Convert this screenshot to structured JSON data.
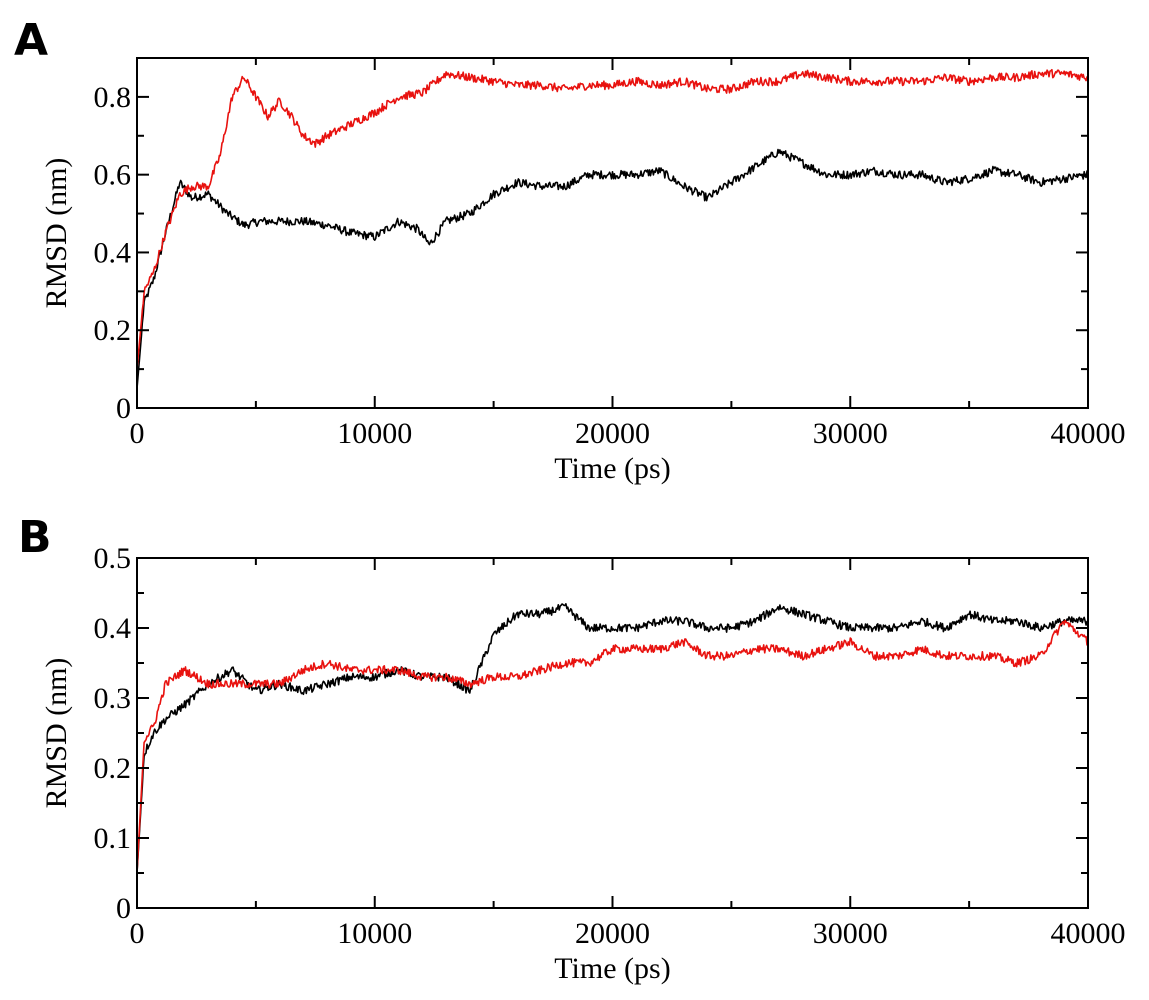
{
  "colors": {
    "black_series": "#000000",
    "red_series": "#e8120f"
  },
  "chart_data": [
    {
      "type": "line",
      "panel": "A",
      "title": "",
      "xlabel": "Time (ps)",
      "ylabel": "RMSD (nm)",
      "xlim": [
        0,
        40000
      ],
      "ylim": [
        0,
        0.9
      ],
      "x_major_ticks": [
        0,
        10000,
        20000,
        30000,
        40000
      ],
      "x_tick_labels": [
        "0",
        "10000",
        "20000",
        "30000",
        "40000"
      ],
      "x_minor_ticks": [
        5000,
        15000,
        25000,
        35000
      ],
      "y_major_ticks": [
        0,
        0.2,
        0.4,
        0.6,
        0.8
      ],
      "y_tick_labels": [
        "0",
        "0.2",
        "0.4",
        "0.6",
        "0.8"
      ],
      "y_minor_ticks": [
        0.1,
        0.3,
        0.5,
        0.7
      ],
      "series": [
        {
          "name": "black",
          "color": "#000000",
          "x": [
            0,
            300,
            700,
            1200,
            1800,
            2300,
            3000,
            3800,
            4500,
            5200,
            6000,
            7000,
            8000,
            9000,
            10000,
            11000,
            11800,
            12300,
            13000,
            14000,
            15000,
            16000,
            17000,
            18000,
            19000,
            20000,
            21000,
            22000,
            23000,
            24000,
            25000,
            26000,
            27000,
            28000,
            29000,
            30000,
            31000,
            32000,
            33000,
            34000,
            35000,
            36000,
            37000,
            38000,
            39000,
            40000
          ],
          "values": [
            0.05,
            0.27,
            0.33,
            0.45,
            0.58,
            0.54,
            0.55,
            0.5,
            0.47,
            0.48,
            0.48,
            0.48,
            0.47,
            0.45,
            0.44,
            0.48,
            0.46,
            0.42,
            0.48,
            0.5,
            0.55,
            0.58,
            0.57,
            0.57,
            0.6,
            0.6,
            0.6,
            0.61,
            0.57,
            0.54,
            0.58,
            0.62,
            0.66,
            0.63,
            0.6,
            0.6,
            0.61,
            0.6,
            0.6,
            0.58,
            0.59,
            0.61,
            0.6,
            0.58,
            0.59,
            0.6
          ]
        },
        {
          "name": "red",
          "color": "#e8120f",
          "x": [
            0,
            300,
            700,
            1200,
            1800,
            2300,
            3000,
            3500,
            4000,
            4500,
            5000,
            5500,
            6000,
            6500,
            7000,
            7500,
            8000,
            9000,
            10000,
            11000,
            12000,
            13000,
            14000,
            15000,
            16000,
            17000,
            18000,
            19000,
            20000,
            21000,
            22000,
            23000,
            24000,
            25000,
            26000,
            27000,
            28000,
            29000,
            30000,
            31000,
            32000,
            33000,
            34000,
            35000,
            36000,
            37000,
            38000,
            39000,
            40000
          ],
          "values": [
            0.1,
            0.3,
            0.35,
            0.45,
            0.55,
            0.57,
            0.57,
            0.65,
            0.8,
            0.85,
            0.8,
            0.75,
            0.79,
            0.75,
            0.7,
            0.68,
            0.7,
            0.73,
            0.76,
            0.8,
            0.81,
            0.86,
            0.85,
            0.84,
            0.83,
            0.83,
            0.82,
            0.83,
            0.83,
            0.84,
            0.83,
            0.84,
            0.82,
            0.82,
            0.84,
            0.84,
            0.86,
            0.85,
            0.84,
            0.84,
            0.84,
            0.84,
            0.85,
            0.84,
            0.85,
            0.85,
            0.86,
            0.86,
            0.85
          ]
        }
      ]
    },
    {
      "type": "line",
      "panel": "B",
      "title": "",
      "xlabel": "Time (ps)",
      "ylabel": "RMSD (nm)",
      "xlim": [
        0,
        40000
      ],
      "ylim": [
        0,
        0.5
      ],
      "x_major_ticks": [
        0,
        10000,
        20000,
        30000,
        40000
      ],
      "x_tick_labels": [
        "0",
        "10000",
        "20000",
        "30000",
        "40000"
      ],
      "x_minor_ticks": [
        5000,
        15000,
        25000,
        35000
      ],
      "y_major_ticks": [
        0,
        0.1,
        0.2,
        0.3,
        0.4,
        0.5
      ],
      "y_tick_labels": [
        "0",
        "0.1",
        "0.2",
        "0.3",
        "0.4",
        "0.5"
      ],
      "y_minor_ticks": [
        0.05,
        0.15,
        0.25,
        0.35,
        0.45
      ],
      "series": [
        {
          "name": "black",
          "color": "#000000",
          "x": [
            0,
            300,
            700,
            1200,
            2000,
            3000,
            4000,
            5000,
            6000,
            7000,
            8000,
            9000,
            10000,
            11000,
            12000,
            13000,
            14000,
            14500,
            15000,
            16000,
            17000,
            18000,
            19000,
            20000,
            21000,
            22000,
            23000,
            24000,
            25000,
            26000,
            27000,
            28000,
            29000,
            30000,
            31000,
            32000,
            33000,
            34000,
            35000,
            36000,
            37000,
            38000,
            39000,
            40000
          ],
          "values": [
            0.05,
            0.22,
            0.25,
            0.27,
            0.29,
            0.32,
            0.34,
            0.31,
            0.32,
            0.31,
            0.32,
            0.33,
            0.33,
            0.34,
            0.33,
            0.33,
            0.31,
            0.35,
            0.39,
            0.42,
            0.42,
            0.43,
            0.4,
            0.4,
            0.4,
            0.41,
            0.41,
            0.4,
            0.4,
            0.41,
            0.43,
            0.42,
            0.41,
            0.4,
            0.4,
            0.4,
            0.41,
            0.4,
            0.42,
            0.41,
            0.41,
            0.4,
            0.41,
            0.41
          ]
        },
        {
          "name": "red",
          "color": "#e8120f",
          "x": [
            0,
            300,
            700,
            1200,
            2000,
            3000,
            4000,
            5000,
            6000,
            7000,
            8000,
            9000,
            10000,
            11000,
            12000,
            13000,
            14000,
            15000,
            16000,
            17000,
            18000,
            19000,
            20000,
            21000,
            22000,
            23000,
            24000,
            25000,
            26000,
            27000,
            28000,
            29000,
            30000,
            31000,
            32000,
            33000,
            34000,
            35000,
            36000,
            37000,
            38000,
            39000,
            40000
          ],
          "values": [
            0.05,
            0.24,
            0.26,
            0.32,
            0.34,
            0.32,
            0.32,
            0.32,
            0.32,
            0.34,
            0.35,
            0.34,
            0.34,
            0.34,
            0.33,
            0.33,
            0.32,
            0.33,
            0.33,
            0.34,
            0.35,
            0.35,
            0.37,
            0.37,
            0.37,
            0.38,
            0.36,
            0.36,
            0.37,
            0.37,
            0.36,
            0.37,
            0.38,
            0.36,
            0.36,
            0.37,
            0.36,
            0.36,
            0.36,
            0.35,
            0.36,
            0.41,
            0.38
          ]
        }
      ]
    }
  ]
}
